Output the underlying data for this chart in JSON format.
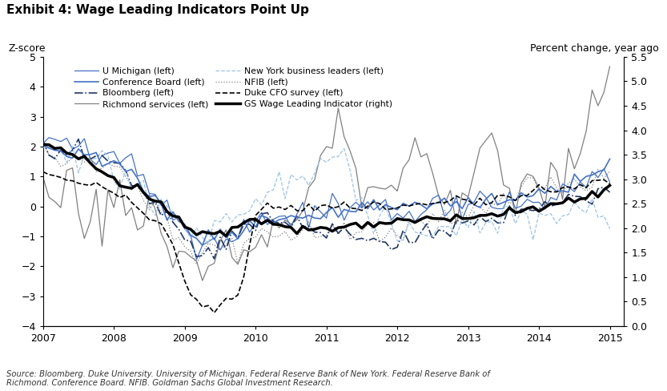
{
  "title": "Exhibit 4: Wage Leading Indicators Point Up",
  "label_left": "Z-score",
  "label_right": "Percent change, year ago",
  "source": "Source: Bloomberg. Duke University. University of Michigan. Federal Reserve Bank of New York. Federal Reserve Bank of\nRichmond. Conference Board. NFIB. Goldman Sachs Global Investment Research.",
  "xlim": [
    2007.0,
    2015.2
  ],
  "ylim_left": [
    -4,
    5
  ],
  "ylim_right": [
    0.0,
    5.5
  ],
  "yticks_left": [
    -4,
    -3,
    -2,
    -1,
    0,
    1,
    2,
    3,
    4,
    5
  ],
  "yticks_right": [
    0.0,
    0.5,
    1.0,
    1.5,
    2.0,
    2.5,
    3.0,
    3.5,
    4.0,
    4.5,
    5.0,
    5.5
  ],
  "xticks": [
    2007,
    2008,
    2009,
    2010,
    2011,
    2012,
    2013,
    2014,
    2015
  ],
  "background_color": "#ffffff",
  "medium_blue": "#4472c4",
  "dark_blue": "#1f3864",
  "light_blue": "#9dc3e6",
  "gray": "#808080",
  "black": "#000000"
}
